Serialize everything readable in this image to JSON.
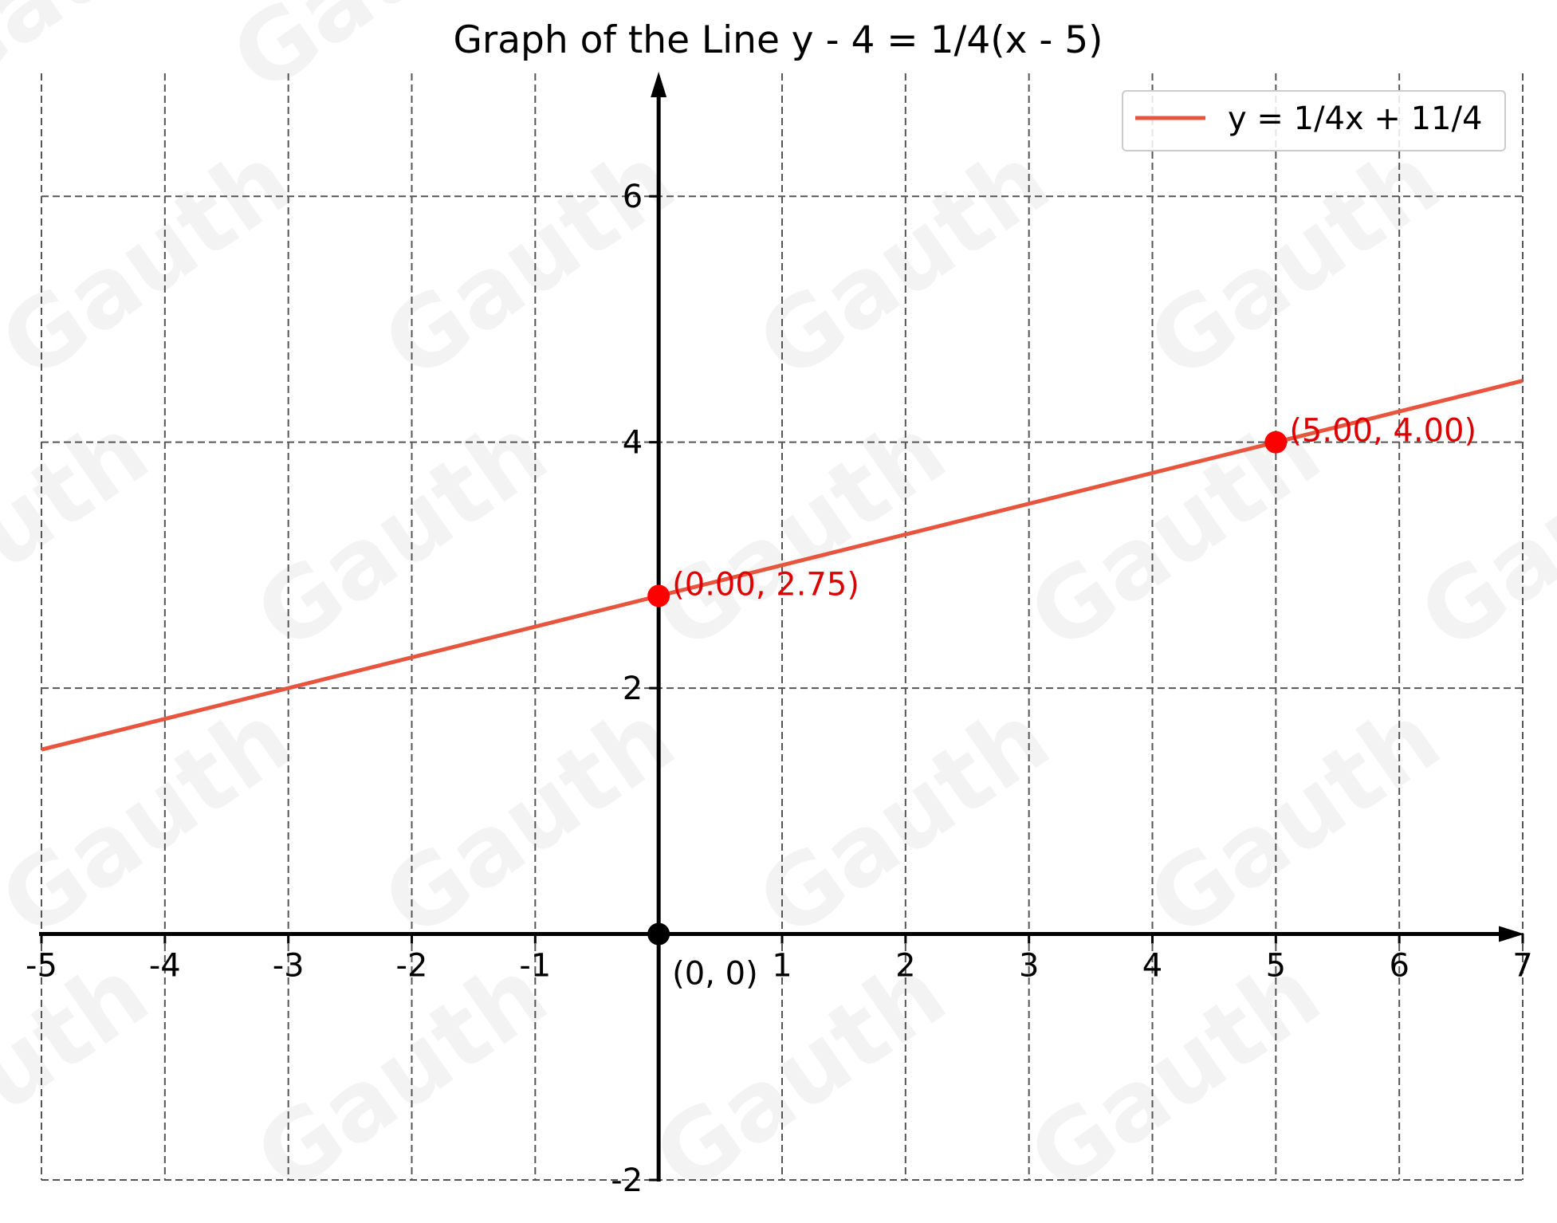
{
  "chart_data": {
    "type": "line",
    "title": "Graph of the Line y - 4 = 1/4(x - 5)",
    "xlabel": "",
    "ylabel": "",
    "xlim": [
      -5,
      7
    ],
    "ylim": [
      -2,
      7
    ],
    "x_ticks": [
      "-5",
      "-4",
      "-3",
      "-2",
      "-1",
      "1",
      "2",
      "3",
      "4",
      "5",
      "6",
      "7"
    ],
    "x_tick_values": [
      -5,
      -4,
      -3,
      -2,
      -1,
      1,
      2,
      3,
      4,
      5,
      6,
      7
    ],
    "y_ticks": [
      "-2",
      "2",
      "4",
      "6"
    ],
    "y_tick_values": [
      -2,
      2,
      4,
      6
    ],
    "grid": true,
    "grid_style": "dashed",
    "legend_position": "top-right",
    "series": [
      {
        "name": "y = 1/4x + 11/4",
        "color": "#e8553e",
        "slope": 0.25,
        "intercept": 2.75,
        "x": [
          -5,
          7
        ],
        "y": [
          1.5,
          4.5
        ]
      }
    ],
    "points": [
      {
        "x": 0,
        "y": 2.75,
        "label": "(0.00, 2.75)",
        "color": "#ff0000",
        "label_color": "#dd0000"
      },
      {
        "x": 5,
        "y": 4,
        "label": "(5.00, 4.00)",
        "color": "#ff0000",
        "label_color": "#dd0000"
      },
      {
        "x": 0,
        "y": 0,
        "label": "(0, 0)",
        "color": "#000000",
        "label_color": "#000000"
      }
    ]
  },
  "watermark": "Gauth"
}
